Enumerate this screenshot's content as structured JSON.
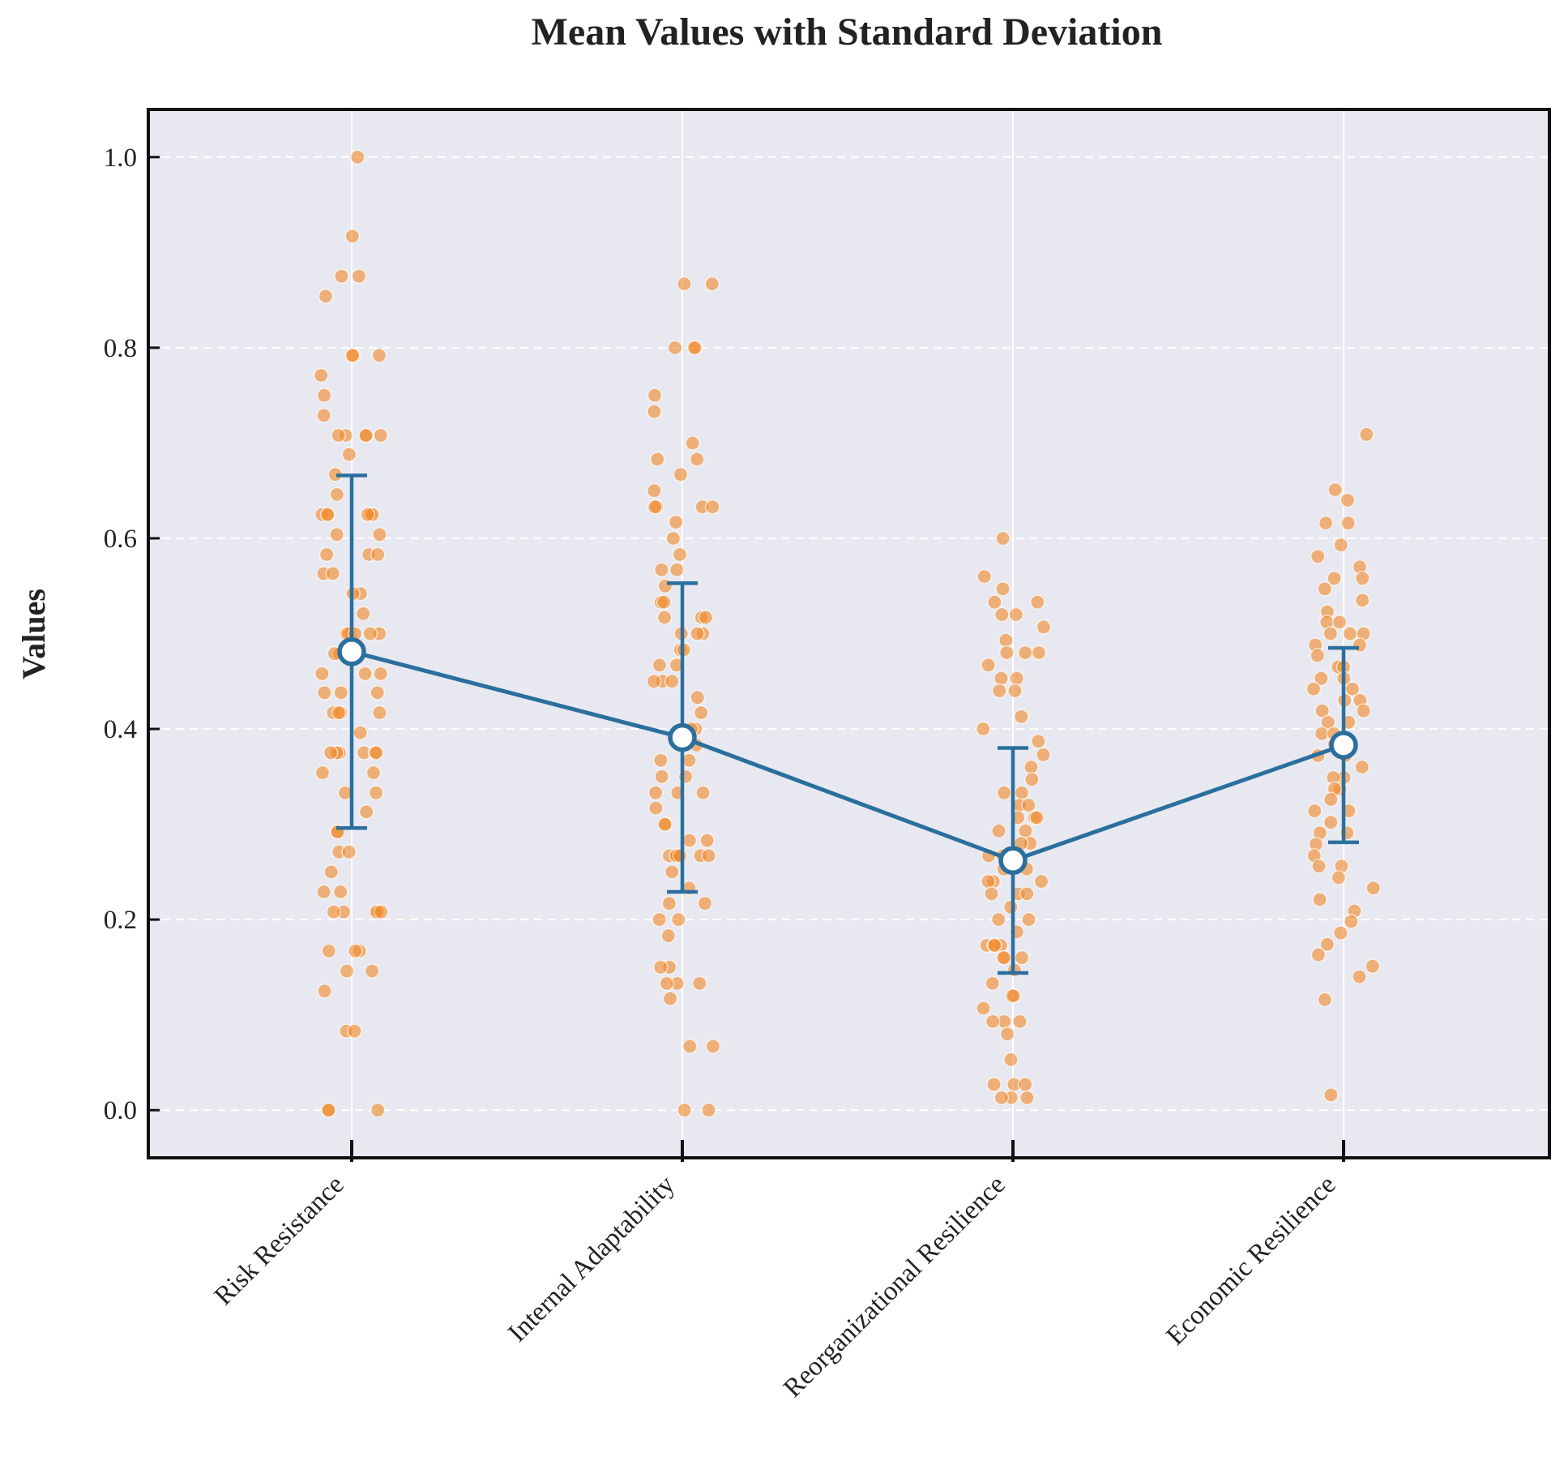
{
  "chart_data": {
    "type": "scatter",
    "title": "Mean Values with Standard Deviation",
    "xlabel": "",
    "ylabel": "Values",
    "ylim": [
      -0.05,
      1.05
    ],
    "yticks": [
      "0.0",
      "0.2",
      "0.4",
      "0.6",
      "0.8",
      "1.0"
    ],
    "yticks_values": [
      0.0,
      0.2,
      0.4,
      0.6,
      0.8,
      1.0
    ],
    "grid": true,
    "categories": [
      "Risk Resistance",
      "Internal Adaptability",
      "Reorganizational Resilience",
      "Economic Resilience"
    ],
    "mean_series": {
      "name": "Mean",
      "values": [
        0.481,
        0.391,
        0.262,
        0.383
      ],
      "std": [
        0.185,
        0.162,
        0.118,
        0.102
      ]
    },
    "points": [
      [
        1.0,
        0.917,
        0.875,
        0.875,
        0.854,
        0.792,
        0.792,
        0.792,
        0.771,
        0.75,
        0.729,
        0.708,
        0.708,
        0.708,
        0.708,
        0.708,
        0.688,
        0.667,
        0.646,
        0.625,
        0.625,
        0.625,
        0.625,
        0.625,
        0.625,
        0.604,
        0.604,
        0.583,
        0.583,
        0.583,
        0.563,
        0.563,
        0.542,
        0.542,
        0.521,
        0.5,
        0.5,
        0.5,
        0.5,
        0.5,
        0.5,
        0.479,
        0.479,
        0.458,
        0.458,
        0.458,
        0.438,
        0.438,
        0.438,
        0.417,
        0.417,
        0.417,
        0.417,
        0.396,
        0.375,
        0.375,
        0.375,
        0.375,
        0.375,
        0.375,
        0.354,
        0.354,
        0.333,
        0.333,
        0.313,
        0.292,
        0.292,
        0.271,
        0.271,
        0.25,
        0.229,
        0.229,
        0.208,
        0.208,
        0.208,
        0.208,
        0.208,
        0.167,
        0.167,
        0.167,
        0.146,
        0.146,
        0.125,
        0.083,
        0.083,
        0.0,
        0.0,
        0.0
      ],
      [
        0.867,
        0.867,
        0.8,
        0.8,
        0.8,
        0.75,
        0.733,
        0.7,
        0.683,
        0.683,
        0.667,
        0.65,
        0.633,
        0.633,
        0.633,
        0.633,
        0.617,
        0.6,
        0.583,
        0.567,
        0.567,
        0.55,
        0.533,
        0.533,
        0.517,
        0.517,
        0.517,
        0.5,
        0.5,
        0.5,
        0.483,
        0.483,
        0.467,
        0.467,
        0.45,
        0.45,
        0.45,
        0.433,
        0.417,
        0.4,
        0.4,
        0.383,
        0.367,
        0.367,
        0.35,
        0.35,
        0.333,
        0.333,
        0.333,
        0.317,
        0.3,
        0.3,
        0.283,
        0.283,
        0.267,
        0.267,
        0.267,
        0.267,
        0.267,
        0.267,
        0.25,
        0.233,
        0.217,
        0.217,
        0.2,
        0.2,
        0.183,
        0.15,
        0.15,
        0.133,
        0.133,
        0.133,
        0.117,
        0.067,
        0.067,
        0.0,
        0.0
      ],
      [
        0.6,
        0.56,
        0.547,
        0.533,
        0.533,
        0.52,
        0.52,
        0.507,
        0.493,
        0.48,
        0.48,
        0.48,
        0.467,
        0.453,
        0.453,
        0.44,
        0.44,
        0.413,
        0.4,
        0.387,
        0.373,
        0.36,
        0.347,
        0.333,
        0.333,
        0.32,
        0.32,
        0.307,
        0.307,
        0.307,
        0.293,
        0.293,
        0.28,
        0.28,
        0.267,
        0.267,
        0.253,
        0.253,
        0.24,
        0.24,
        0.24,
        0.227,
        0.227,
        0.227,
        0.213,
        0.2,
        0.2,
        0.187,
        0.173,
        0.173,
        0.173,
        0.173,
        0.16,
        0.16,
        0.16,
        0.147,
        0.133,
        0.12,
        0.12,
        0.107,
        0.093,
        0.093,
        0.093,
        0.08,
        0.053,
        0.027,
        0.027,
        0.027,
        0.013,
        0.013,
        0.013
      ],
      [
        0.709,
        0.651,
        0.64,
        0.616,
        0.616,
        0.593,
        0.581,
        0.57,
        0.558,
        0.558,
        0.547,
        0.535,
        0.523,
        0.512,
        0.512,
        0.5,
        0.5,
        0.5,
        0.488,
        0.488,
        0.477,
        0.465,
        0.465,
        0.453,
        0.453,
        0.442,
        0.442,
        0.43,
        0.43,
        0.419,
        0.419,
        0.407,
        0.407,
        0.395,
        0.395,
        0.384,
        0.384,
        0.372,
        0.372,
        0.36,
        0.349,
        0.349,
        0.337,
        0.337,
        0.326,
        0.314,
        0.314,
        0.302,
        0.291,
        0.291,
        0.279,
        0.267,
        0.256,
        0.256,
        0.244,
        0.233,
        0.221,
        0.209,
        0.198,
        0.186,
        0.174,
        0.163,
        0.151,
        0.14,
        0.116,
        0.016
      ]
    ]
  }
}
